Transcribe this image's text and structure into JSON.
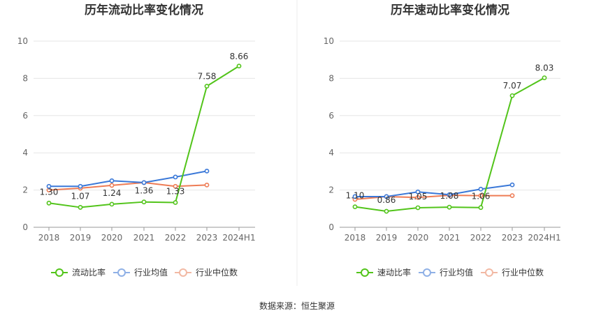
{
  "colors": {
    "series1": "#52c41a",
    "series2": "#3a78d8",
    "series3": "#ee7c55",
    "legend2": "#8fb0e6",
    "legend3": "#f2b9a4",
    "grid": "#e6e6e6",
    "divider": "#eeeeee"
  },
  "source": "数据来源：恒生聚源",
  "chart_data": [
    {
      "type": "line",
      "title": "历年流动比率变化情况",
      "categories": [
        "2018",
        "2019",
        "2020",
        "2021",
        "2022",
        "2023",
        "2024H1"
      ],
      "ylim": [
        0,
        10
      ],
      "yticks": [
        "0",
        "2",
        "4",
        "6",
        "8",
        "10"
      ],
      "grid": true,
      "legend_position": "bottom",
      "series": [
        {
          "name": "流动比率",
          "values": [
            1.3,
            1.07,
            1.24,
            1.36,
            1.33,
            7.58,
            8.66
          ],
          "labels": [
            "1.30",
            "1.07",
            "1.24",
            "1.36",
            "1.33",
            "7.58",
            "8.66"
          ]
        },
        {
          "name": "行业均值",
          "values": [
            2.2,
            2.2,
            2.5,
            2.4,
            2.7,
            3.02,
            null
          ]
        },
        {
          "name": "行业中位数",
          "values": [
            2.0,
            2.1,
            2.25,
            2.4,
            2.2,
            2.27,
            null
          ]
        }
      ]
    },
    {
      "type": "line",
      "title": "历年速动比率变化情况",
      "categories": [
        "2018",
        "2019",
        "2020",
        "2021",
        "2022",
        "2023",
        "2024H1"
      ],
      "ylim": [
        0,
        10
      ],
      "yticks": [
        "0",
        "2",
        "4",
        "6",
        "8",
        "10"
      ],
      "grid": true,
      "legend_position": "bottom",
      "series": [
        {
          "name": "速动比率",
          "values": [
            1.1,
            0.86,
            1.05,
            1.08,
            1.06,
            7.07,
            8.03
          ],
          "labels": [
            "1.10",
            "0.86",
            "1.05",
            "1.08",
            "1.06",
            "7.07",
            "8.03"
          ]
        },
        {
          "name": "行业均值",
          "values": [
            1.65,
            1.65,
            1.9,
            1.75,
            2.05,
            2.28,
            null
          ]
        },
        {
          "name": "行业中位数",
          "values": [
            1.5,
            1.65,
            1.6,
            1.72,
            1.7,
            1.7,
            null
          ]
        }
      ]
    }
  ]
}
